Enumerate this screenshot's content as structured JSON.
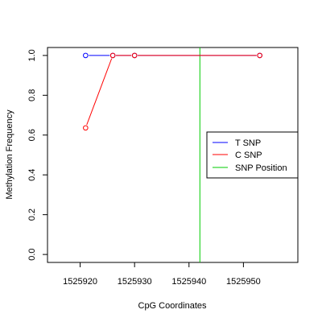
{
  "chart_data": {
    "type": "line",
    "title": "",
    "xlabel": "CpG Coordinates",
    "ylabel": "Methylation Frequency",
    "xlim": [
      1525914,
      1525960
    ],
    "ylim": [
      -0.04,
      1.04
    ],
    "x_ticks": [
      1525920,
      1525930,
      1525940,
      1525950
    ],
    "x_tick_labels": [
      "1525920",
      "1525930",
      "1525940",
      "1525950"
    ],
    "y_ticks": [
      0.0,
      0.2,
      0.4,
      0.6,
      0.8,
      1.0
    ],
    "y_tick_labels": [
      "0.0",
      "0.2",
      "0.4",
      "0.6",
      "0.8",
      "1.0"
    ],
    "grid": false,
    "legend_position": "right",
    "series": [
      {
        "name": "T SNP",
        "color": "#0000ff",
        "x": [
          1525921,
          1525926,
          1525930,
          1525953
        ],
        "y": [
          1.0,
          1.0,
          1.0,
          1.0
        ]
      },
      {
        "name": "C SNP",
        "color": "#ff0000",
        "x": [
          1525921,
          1525926,
          1525930,
          1525953
        ],
        "y": [
          0.636,
          1.0,
          1.0,
          1.0
        ]
      }
    ],
    "snp_position": {
      "name": "SNP Position",
      "color": "#00cc00",
      "x": 1525942
    }
  }
}
